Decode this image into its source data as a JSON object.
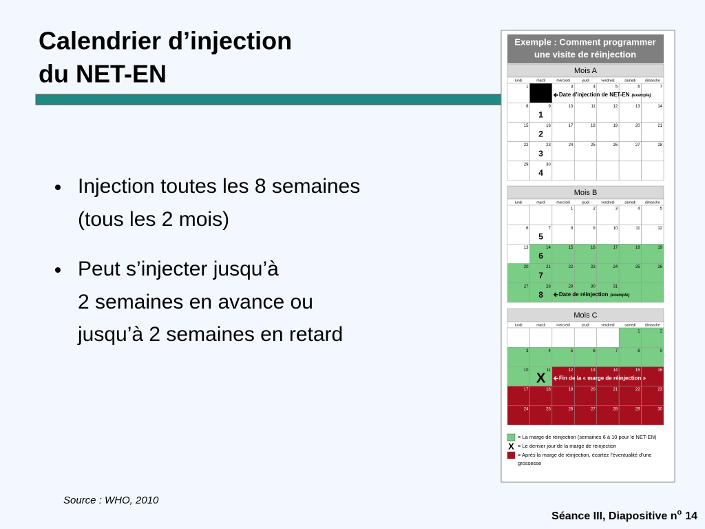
{
  "title": [
    "Calendrier d’injection",
    "du NET-EN"
  ],
  "bullets": [
    [
      "Injection toutes les 8 semaines",
      "(tous les 2 mois)"
    ],
    [
      "Peut s’injecter jusqu’à",
      "2 semaines en avance ou",
      "jusqu’à 2 semaines en retard"
    ]
  ],
  "source": "Source : WHO, 2010",
  "footer": {
    "text": "Séance III, Diapositive n",
    "sup": "o",
    "number": "14"
  },
  "calendar": {
    "header": [
      "Exemple : Comment programmer",
      "une visite de réinjection"
    ],
    "weekdays": [
      "lundi",
      "mardi",
      "mercredi",
      "jeudi",
      "vendredi",
      "samedi",
      "dimanche"
    ],
    "months": [
      {
        "name": "Mois A",
        "weeks": [
          [
            1,
            2,
            3,
            4,
            5,
            6,
            7
          ],
          [
            8,
            9,
            10,
            11,
            12,
            13,
            14
          ],
          [
            15,
            16,
            17,
            18,
            19,
            20,
            21
          ],
          [
            22,
            23,
            24,
            25,
            26,
            27,
            28
          ],
          [
            29,
            30,
            null,
            null,
            null,
            null,
            null
          ]
        ],
        "fills": [
          [
            "#ffffff",
            "#000000",
            "#ffffff",
            "#ffffff",
            "#ffffff",
            "#ffffff",
            "#ffffff"
          ],
          [
            "#ffffff",
            "#ffffff",
            "#ffffff",
            "#ffffff",
            "#ffffff",
            "#ffffff",
            "#ffffff"
          ],
          [
            "#ffffff",
            "#ffffff",
            "#ffffff",
            "#ffffff",
            "#ffffff",
            "#ffffff",
            "#ffffff"
          ],
          [
            "#ffffff",
            "#ffffff",
            "#ffffff",
            "#ffffff",
            "#ffffff",
            "#ffffff",
            "#ffffff"
          ],
          [
            "#ffffff",
            "#ffffff",
            "#ffffff",
            "#ffffff",
            "#ffffff",
            "#ffffff",
            "#ffffff"
          ]
        ],
        "labels": [
          null,
          "1",
          "2",
          "3",
          "4"
        ],
        "notes": [
          {
            "text": "Date d’injection de NET-EN",
            "em": "(exemple)"
          },
          null,
          null,
          null,
          null
        ]
      },
      {
        "name": "Mois B",
        "weeks": [
          [
            null,
            null,
            1,
            2,
            3,
            4,
            5
          ],
          [
            6,
            7,
            8,
            9,
            10,
            11,
            12
          ],
          [
            13,
            14,
            15,
            16,
            17,
            18,
            19
          ],
          [
            20,
            21,
            22,
            23,
            24,
            25,
            26
          ],
          [
            27,
            28,
            29,
            30,
            31,
            null,
            null
          ]
        ],
        "fills": [
          [
            "#ffffff",
            "#ffffff",
            "#ffffff",
            "#ffffff",
            "#ffffff",
            "#ffffff",
            "#ffffff"
          ],
          [
            "#ffffff",
            "#ffffff",
            "#ffffff",
            "#ffffff",
            "#ffffff",
            "#ffffff",
            "#ffffff"
          ],
          [
            "#ffffff",
            "#79cd84",
            "#79cd84",
            "#79cd84",
            "#79cd84",
            "#79cd84",
            "#79cd84"
          ],
          [
            "#79cd84",
            "#79cd84",
            "#79cd84",
            "#79cd84",
            "#79cd84",
            "#79cd84",
            "#79cd84"
          ],
          [
            "#79cd84",
            "#79cd84",
            "#79cd84",
            "#79cd84",
            "#79cd84",
            "#79cd84",
            "#79cd84"
          ]
        ],
        "labels": [
          null,
          "5",
          "6",
          "7",
          "8"
        ],
        "notes": [
          null,
          null,
          null,
          null,
          {
            "text": "Date de réinjection",
            "em": "(exemple)"
          }
        ]
      },
      {
        "name": "Mois C",
        "weeks": [
          [
            null,
            null,
            null,
            null,
            null,
            1,
            2
          ],
          [
            3,
            4,
            5,
            6,
            7,
            8,
            9
          ],
          [
            10,
            11,
            12,
            13,
            14,
            15,
            16
          ],
          [
            17,
            18,
            19,
            20,
            21,
            22,
            23
          ],
          [
            24,
            25,
            26,
            27,
            28,
            29,
            30
          ]
        ],
        "fills": [
          [
            "#ffffff",
            "#ffffff",
            "#ffffff",
            "#ffffff",
            "#ffffff",
            "#79cd84",
            "#79cd84"
          ],
          [
            "#79cd84",
            "#79cd84",
            "#79cd84",
            "#79cd84",
            "#79cd84",
            "#79cd84",
            "#79cd84"
          ],
          [
            "#79cd84",
            "#79cd84",
            "#a6101e",
            "#a6101e",
            "#a6101e",
            "#a6101e",
            "#a6101e"
          ],
          [
            "#a6101e",
            "#a6101e",
            "#a6101e",
            "#a6101e",
            "#a6101e",
            "#a6101e",
            "#a6101e"
          ],
          [
            "#a6101e",
            "#a6101e",
            "#a6101e",
            "#a6101e",
            "#a6101e",
            "#a6101e",
            "#a6101e"
          ]
        ],
        "labels": [
          null,
          null,
          "X",
          null,
          null
        ],
        "notes": [
          null,
          null,
          {
            "text": "Fin de la « marge de réinjection »",
            "em": null
          },
          null,
          null
        ]
      }
    ],
    "legend": [
      {
        "swatch": "#79cd84",
        "symbol": null,
        "lines": [
          "= La marge de réinjection (semaines 6 à 10 pour le NET-EN)"
        ]
      },
      {
        "swatch": null,
        "symbol": "X",
        "lines": [
          "= Le dernier jour de la marge de réinjection"
        ]
      },
      {
        "swatch": "#a6101e",
        "symbol": null,
        "lines": [
          "= Après la marge de réinjection, écartez l’éventualité d’une",
          "grossesse"
        ]
      }
    ]
  }
}
